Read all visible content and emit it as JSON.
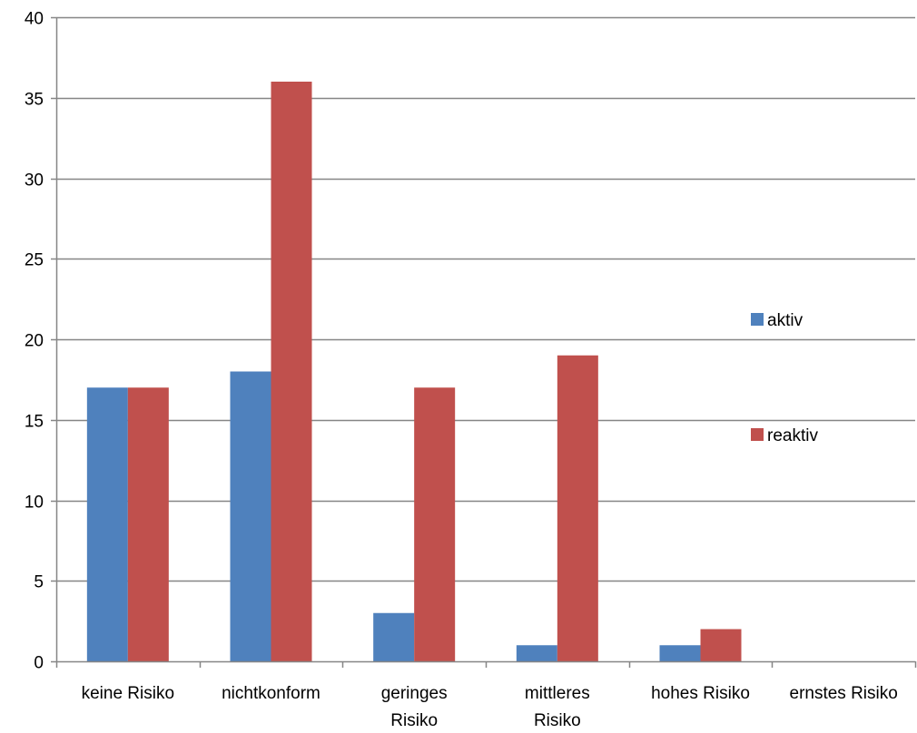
{
  "chart_data": {
    "type": "bar",
    "title": "",
    "xlabel": "",
    "ylabel": "",
    "ylim": [
      0,
      40
    ],
    "ytick_step": 5,
    "yticks": [
      "0",
      "5",
      "10",
      "15",
      "20",
      "25",
      "30",
      "35",
      "40"
    ],
    "grid": true,
    "legend_position": "right",
    "categories": [
      [
        "keine Risiko"
      ],
      [
        "nichtkonform"
      ],
      [
        "geringes",
        "Risiko"
      ],
      [
        "mittleres",
        "Risiko"
      ],
      [
        "hohes Risiko"
      ],
      [
        "ernstes Risiko"
      ]
    ],
    "series": [
      {
        "name": "aktiv",
        "color": "#4F81BD",
        "values": [
          17,
          18,
          3,
          1,
          1,
          0
        ]
      },
      {
        "name": "reaktiv",
        "color": "#C0504D",
        "values": [
          17,
          36,
          17,
          19,
          2,
          0
        ]
      }
    ]
  }
}
